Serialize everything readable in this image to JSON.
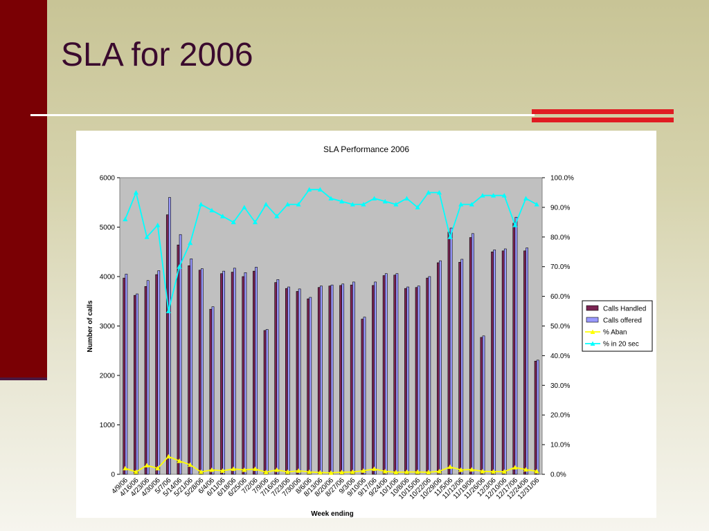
{
  "slide": {
    "title": "SLA for 2006"
  },
  "colors": {
    "handled": "#7b2452",
    "offered": "#9999ff",
    "aban": "#ffff00",
    "in20": "#00ffff",
    "plot_bg": "#c0c0c0",
    "accent_red": "#e01b22",
    "sidebar": "#7a0004"
  },
  "chart_data": {
    "type": "bar",
    "title": "SLA Performance 2006",
    "xlabel": "Week ending",
    "ylabel": "Number of calls",
    "ylim": [
      0,
      6000
    ],
    "y2lim": [
      0,
      100
    ],
    "y_ticks": [
      "0",
      "1000",
      "2000",
      "3000",
      "4000",
      "5000",
      "6000"
    ],
    "y2_ticks": [
      "0.0%",
      "10.0%",
      "20.0%",
      "30.0%",
      "40.0%",
      "50.0%",
      "60.0%",
      "70.0%",
      "80.0%",
      "90.0%",
      "100.0%"
    ],
    "grid": false,
    "legend_position": "right",
    "categories": [
      "4/9/06",
      "4/16/06",
      "4/23/06",
      "4/30/06",
      "5/7/06",
      "5/14/06",
      "5/21/06",
      "5/28/06",
      "6/4/06",
      "6/11/06",
      "6/18/06",
      "6/25/06",
      "7/2/06",
      "7/9/06",
      "7/16/06",
      "7/23/06",
      "7/30/06",
      "8/6/06",
      "8/13/06",
      "8/20/06",
      "8/27/06",
      "9/3/06",
      "9/10/06",
      "9/17/06",
      "9/24/06",
      "10/1/06",
      "10/8/06",
      "10/15/06",
      "10/22/06",
      "10/29/06",
      "11/5/06",
      "11/12/06",
      "11/19/06",
      "11/26/06",
      "12/3/06",
      "12/10/06",
      "12/17/06",
      "12/24/06",
      "12/31/06"
    ],
    "series": [
      {
        "name": "Calls Handled",
        "type": "bar",
        "axis": "left",
        "values": [
          3970,
          3620,
          3800,
          4040,
          5250,
          4640,
          4220,
          4130,
          3340,
          4060,
          4090,
          4000,
          4110,
          2910,
          3880,
          3760,
          3700,
          3550,
          3780,
          3810,
          3820,
          3830,
          3140,
          3820,
          4020,
          4030,
          3760,
          3780,
          3970,
          4280,
          4900,
          4290,
          4790,
          2770,
          4500,
          4520,
          5080,
          4520,
          2290
        ]
      },
      {
        "name": "Calls offered",
        "type": "bar",
        "axis": "left",
        "values": [
          4050,
          3650,
          3920,
          4120,
          5600,
          4850,
          4360,
          4160,
          3390,
          4110,
          4170,
          4080,
          4190,
          2930,
          3940,
          3790,
          3750,
          3580,
          3810,
          3830,
          3850,
          3890,
          3180,
          3890,
          4060,
          4060,
          3790,
          3810,
          4000,
          4320,
          4980,
          4350,
          4870,
          2800,
          4540,
          4560,
          5200,
          4580,
          2310
        ]
      },
      {
        "name": "% Aban",
        "type": "line",
        "axis": "right",
        "marker": "triangle",
        "values": [
          2.0,
          0.8,
          3.0,
          2.0,
          6.0,
          4.5,
          3.2,
          0.8,
          1.5,
          1.2,
          1.8,
          1.5,
          1.8,
          0.7,
          1.5,
          0.8,
          1.2,
          0.8,
          0.6,
          0.5,
          0.7,
          0.8,
          1.2,
          1.8,
          1.0,
          0.7,
          0.8,
          0.8,
          0.7,
          1.0,
          2.5,
          1.5,
          1.6,
          1.0,
          0.9,
          0.9,
          2.3,
          1.6,
          1.0
        ]
      },
      {
        "name": "% in 20 sec",
        "type": "line",
        "axis": "right",
        "marker": "triangle",
        "values": [
          86,
          95,
          80,
          84,
          55,
          70,
          78,
          91,
          89,
          87,
          85,
          90,
          85,
          91,
          87,
          91,
          91,
          96,
          96,
          93,
          92,
          91,
          91,
          93,
          92,
          91,
          93,
          90,
          95,
          95,
          80,
          91,
          91,
          94,
          94,
          94,
          84,
          93,
          91
        ]
      }
    ]
  }
}
